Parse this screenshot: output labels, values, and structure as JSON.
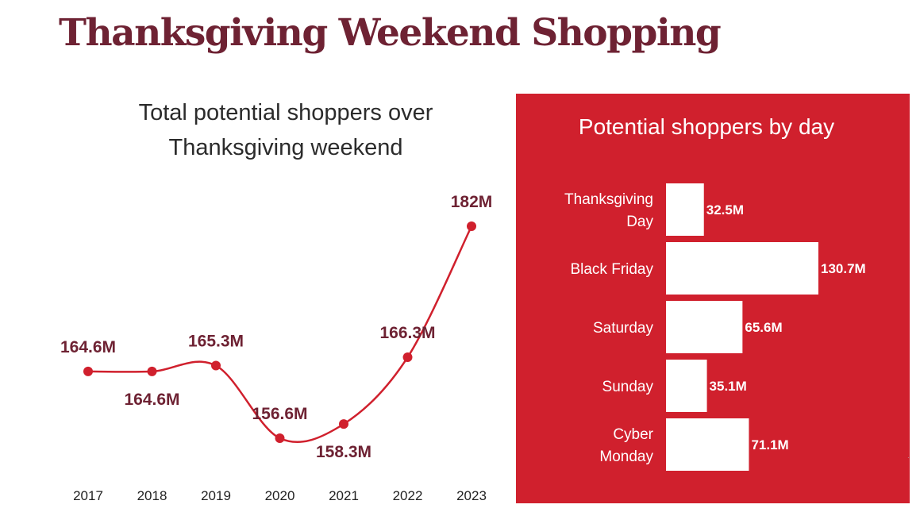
{
  "page": {
    "title": "Thanksgiving Weekend Shopping"
  },
  "chart_data": [
    {
      "type": "line",
      "title": [
        "Total potential shoppers over",
        "Thanksgiving weekend"
      ],
      "unit": "M",
      "x": [
        "2017",
        "2018",
        "2019",
        "2020",
        "2021",
        "2022",
        "2023"
      ],
      "values": [
        164.6,
        164.6,
        165.3,
        156.6,
        158.3,
        166.3,
        182
      ],
      "labels": [
        "164.6M",
        "164.6M",
        "165.3M",
        "156.6M",
        "158.3M",
        "166.3M",
        "182M"
      ],
      "label_positions": [
        "above",
        "below",
        "above",
        "above",
        "below",
        "above",
        "above"
      ],
      "ylim": [
        150,
        186
      ],
      "grid": false,
      "color": "#d0202d"
    },
    {
      "type": "bar",
      "orientation": "horizontal",
      "title": "Potential shoppers by day",
      "categories": [
        [
          "Thanksgiving",
          "Day"
        ],
        [
          "Black Friday"
        ],
        [
          "Saturday"
        ],
        [
          "Sunday"
        ],
        [
          "Cyber",
          "Monday"
        ]
      ],
      "values": [
        32.5,
        130.7,
        65.6,
        35.1,
        71.1
      ],
      "labels": [
        "32.5M",
        "130.7M",
        "65.6M",
        "35.1M",
        "71.1M"
      ],
      "xlim": [
        0,
        130.7
      ],
      "background": "#d0202d",
      "bar_color": "#ffffff"
    }
  ]
}
